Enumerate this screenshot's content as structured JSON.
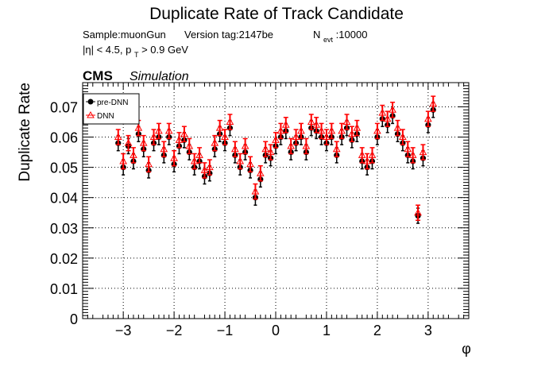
{
  "chart_data": {
    "type": "scatter",
    "title": "Duplicate Rate of Track Candidate",
    "info": {
      "sample": "Sample:muonGun",
      "version": "Version tag:2147be",
      "nevt_main": "N",
      "nevt_sub": "evt",
      "nevt_val": ":10000",
      "cut_part1": "|η| < 4.5, p",
      "cut_sub": "T",
      "cut_part2": " > 0.9 GeV"
    },
    "cms": "CMS",
    "simulation": "Simulation",
    "xlabel": "φ",
    "ylabel": "Duplicate Rate",
    "xlim": [
      -3.8,
      3.8
    ],
    "ylim": [
      0,
      0.078
    ],
    "xticks": [
      -3,
      -2,
      -1,
      0,
      1,
      2,
      3
    ],
    "xtick_labels": [
      "−3",
      "−2",
      "−1",
      "0",
      "1",
      "2",
      "3"
    ],
    "yticks": [
      0,
      0.01,
      0.02,
      0.03,
      0.04,
      0.05,
      0.06,
      0.07
    ],
    "ytick_labels": [
      "0",
      "0.01",
      "0.02",
      "0.03",
      "0.04",
      "0.05",
      "0.06",
      "0.07"
    ],
    "grid": true,
    "legend_position": "top-left",
    "series": [
      {
        "name": "pre-DNN",
        "color": "#000000",
        "marker": "filled-circle",
        "x": [
          -3.1,
          -3.0,
          -2.9,
          -2.8,
          -2.7,
          -2.6,
          -2.5,
          -2.4,
          -2.3,
          -2.2,
          -2.1,
          -2.0,
          -1.9,
          -1.8,
          -1.7,
          -1.6,
          -1.5,
          -1.4,
          -1.3,
          -1.2,
          -1.1,
          -1.0,
          -0.9,
          -0.8,
          -0.7,
          -0.6,
          -0.5,
          -0.4,
          -0.3,
          -0.2,
          -0.1,
          0.0,
          0.1,
          0.2,
          0.3,
          0.4,
          0.5,
          0.6,
          0.7,
          0.8,
          0.9,
          1.0,
          1.1,
          1.2,
          1.3,
          1.4,
          1.5,
          1.6,
          1.7,
          1.8,
          1.9,
          2.0,
          2.1,
          2.2,
          2.3,
          2.4,
          2.5,
          2.6,
          2.7,
          2.8,
          2.9,
          3.0,
          3.1
        ],
        "y": [
          0.058,
          0.05,
          0.057,
          0.052,
          0.061,
          0.056,
          0.049,
          0.058,
          0.06,
          0.054,
          0.06,
          0.051,
          0.057,
          0.059,
          0.055,
          0.05,
          0.052,
          0.047,
          0.048,
          0.056,
          0.061,
          0.058,
          0.063,
          0.054,
          0.05,
          0.055,
          0.049,
          0.04,
          0.046,
          0.054,
          0.053,
          0.057,
          0.06,
          0.062,
          0.055,
          0.058,
          0.06,
          0.055,
          0.063,
          0.062,
          0.06,
          0.058,
          0.06,
          0.054,
          0.06,
          0.063,
          0.059,
          0.061,
          0.052,
          0.05,
          0.052,
          0.06,
          0.066,
          0.064,
          0.067,
          0.061,
          0.058,
          0.054,
          0.052,
          0.034,
          0.053,
          0.064,
          0.069
        ],
        "yerr": [
          0.0025,
          0.0025,
          0.0025,
          0.0025,
          0.0025,
          0.0025,
          0.0025,
          0.0025,
          0.0025,
          0.0025,
          0.0025,
          0.0025,
          0.0025,
          0.0025,
          0.0025,
          0.0025,
          0.0025,
          0.0025,
          0.0025,
          0.0025,
          0.0025,
          0.0025,
          0.0025,
          0.0025,
          0.0025,
          0.0025,
          0.0025,
          0.0025,
          0.0025,
          0.0025,
          0.0025,
          0.0025,
          0.0025,
          0.0025,
          0.0025,
          0.0025,
          0.0025,
          0.0025,
          0.0025,
          0.0025,
          0.0025,
          0.0025,
          0.0025,
          0.0025,
          0.0025,
          0.0025,
          0.0025,
          0.0025,
          0.0025,
          0.0025,
          0.0025,
          0.0025,
          0.0025,
          0.0025,
          0.0025,
          0.0025,
          0.0025,
          0.0025,
          0.0025,
          0.0025,
          0.0025,
          0.0025,
          0.0025
        ]
      },
      {
        "name": "DNN",
        "color": "#ff0000",
        "marker": "open-triangle",
        "x": [
          -3.1,
          -3.0,
          -2.9,
          -2.8,
          -2.7,
          -2.6,
          -2.5,
          -2.4,
          -2.3,
          -2.2,
          -2.1,
          -2.0,
          -1.9,
          -1.8,
          -1.7,
          -1.6,
          -1.5,
          -1.4,
          -1.3,
          -1.2,
          -1.1,
          -1.0,
          -0.9,
          -0.8,
          -0.7,
          -0.6,
          -0.5,
          -0.4,
          -0.3,
          -0.2,
          -0.1,
          0.0,
          0.1,
          0.2,
          0.3,
          0.4,
          0.5,
          0.6,
          0.7,
          0.8,
          0.9,
          1.0,
          1.1,
          1.2,
          1.3,
          1.4,
          1.5,
          1.6,
          1.7,
          1.8,
          1.9,
          2.0,
          2.1,
          2.2,
          2.3,
          2.4,
          2.5,
          2.6,
          2.7,
          2.8,
          2.9,
          3.0,
          3.1
        ],
        "y": [
          0.06,
          0.052,
          0.058,
          0.054,
          0.063,
          0.058,
          0.051,
          0.06,
          0.062,
          0.056,
          0.062,
          0.053,
          0.059,
          0.061,
          0.057,
          0.052,
          0.054,
          0.049,
          0.05,
          0.058,
          0.063,
          0.06,
          0.065,
          0.056,
          0.052,
          0.057,
          0.051,
          0.042,
          0.048,
          0.056,
          0.055,
          0.059,
          0.062,
          0.064,
          0.057,
          0.06,
          0.062,
          0.057,
          0.065,
          0.064,
          0.062,
          0.06,
          0.062,
          0.056,
          0.062,
          0.065,
          0.061,
          0.063,
          0.054,
          0.052,
          0.054,
          0.062,
          0.068,
          0.066,
          0.069,
          0.063,
          0.06,
          0.056,
          0.054,
          0.035,
          0.055,
          0.066,
          0.071
        ],
        "yerr": [
          0.0025,
          0.0025,
          0.0025,
          0.0025,
          0.0025,
          0.0025,
          0.0025,
          0.0025,
          0.0025,
          0.0025,
          0.0025,
          0.0025,
          0.0025,
          0.0025,
          0.0025,
          0.0025,
          0.0025,
          0.0025,
          0.0025,
          0.0025,
          0.0025,
          0.0025,
          0.0025,
          0.0025,
          0.0025,
          0.0025,
          0.0025,
          0.0025,
          0.0025,
          0.0025,
          0.0025,
          0.0025,
          0.0025,
          0.0025,
          0.0025,
          0.0025,
          0.0025,
          0.0025,
          0.0025,
          0.0025,
          0.0025,
          0.0025,
          0.0025,
          0.0025,
          0.0025,
          0.0025,
          0.0025,
          0.0025,
          0.0025,
          0.0025,
          0.0025,
          0.0025,
          0.0025,
          0.0025,
          0.0025,
          0.0025,
          0.0025,
          0.0025,
          0.0025,
          0.0025,
          0.0025,
          0.0025,
          0.0025
        ]
      }
    ]
  }
}
